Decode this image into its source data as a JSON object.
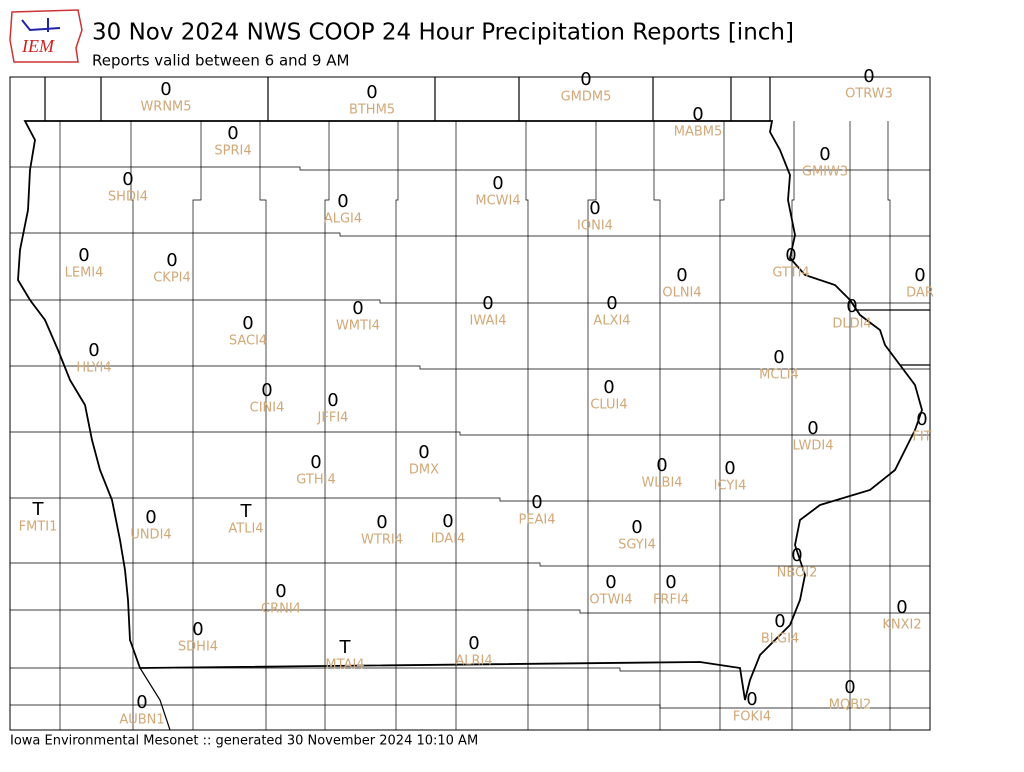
{
  "header": {
    "logo": "IEM",
    "title": "30 Nov 2024 NWS COOP 24 Hour Precipitation Reports [inch]",
    "subtitle": "Reports valid between 6 and 9 AM"
  },
  "stations": [
    {
      "id": "WRNM5",
      "value": 0
    },
    {
      "id": "BTHM5",
      "value": 0
    },
    {
      "id": "GMDM5",
      "value": 0
    },
    {
      "id": "OTRW3",
      "value": 0
    },
    {
      "id": "MABM5",
      "value": 0
    },
    {
      "id": "SPRI4",
      "value": 0
    },
    {
      "id": "GMIW3",
      "value": 0
    },
    {
      "id": "SHDI4",
      "value": 0
    },
    {
      "id": "MCWI4",
      "value": 0
    },
    {
      "id": "ALGI4",
      "value": 0
    },
    {
      "id": "IONI4",
      "value": 0
    },
    {
      "id": "LEMI4",
      "value": 0
    },
    {
      "id": "CKPI4",
      "value": 0
    },
    {
      "id": "GTTI4",
      "value": 0
    },
    {
      "id": "OLNI4",
      "value": 0
    },
    {
      "id": "DAR",
      "value": 0
    },
    {
      "id": "DLDI4",
      "value": 0
    },
    {
      "id": "IWAI4",
      "value": 0
    },
    {
      "id": "ALXI4",
      "value": 0
    },
    {
      "id": "WMTI4",
      "value": 0
    },
    {
      "id": "SACI4",
      "value": 0
    },
    {
      "id": "HLYI4",
      "value": 0
    },
    {
      "id": "MCLI4",
      "value": 0
    },
    {
      "id": "CLUI4",
      "value": 0
    },
    {
      "id": "CINI4",
      "value": 0
    },
    {
      "id": "JFFI4",
      "value": 0
    },
    {
      "id": "FIT",
      "value": 0
    },
    {
      "id": "LWDI4",
      "value": 0
    },
    {
      "id": "DMX",
      "value": 0
    },
    {
      "id": "GTHI4",
      "value": 0
    },
    {
      "id": "WLBI4",
      "value": 0
    },
    {
      "id": "ICYI4",
      "value": 0
    },
    {
      "id": "PEAI4",
      "value": 0
    },
    {
      "id": "FMTI1",
      "value": "T"
    },
    {
      "id": "ATLI4",
      "value": "T"
    },
    {
      "id": "UNDI4",
      "value": 0
    },
    {
      "id": "IDAI4",
      "value": 0
    },
    {
      "id": "WTRI4",
      "value": 0
    },
    {
      "id": "SGYI4",
      "value": 0
    },
    {
      "id": "NBOI2",
      "value": 0
    },
    {
      "id": "OTWI4",
      "value": 0
    },
    {
      "id": "FRFI4",
      "value": 0
    },
    {
      "id": "CRNI4",
      "value": 0
    },
    {
      "id": "KNXI2",
      "value": 0
    },
    {
      "id": "BLGI4",
      "value": 0
    },
    {
      "id": "SDHI4",
      "value": 0
    },
    {
      "id": "MTAI4",
      "value": "T"
    },
    {
      "id": "ALRI4",
      "value": 0
    },
    {
      "id": "MQBI2",
      "value": 0
    },
    {
      "id": "AUBN1",
      "value": 0
    },
    {
      "id": "FOKI4",
      "value": 0
    }
  ],
  "footer": "Iowa Environmental Mesonet :: generated 30 November 2024 10:10 AM"
}
